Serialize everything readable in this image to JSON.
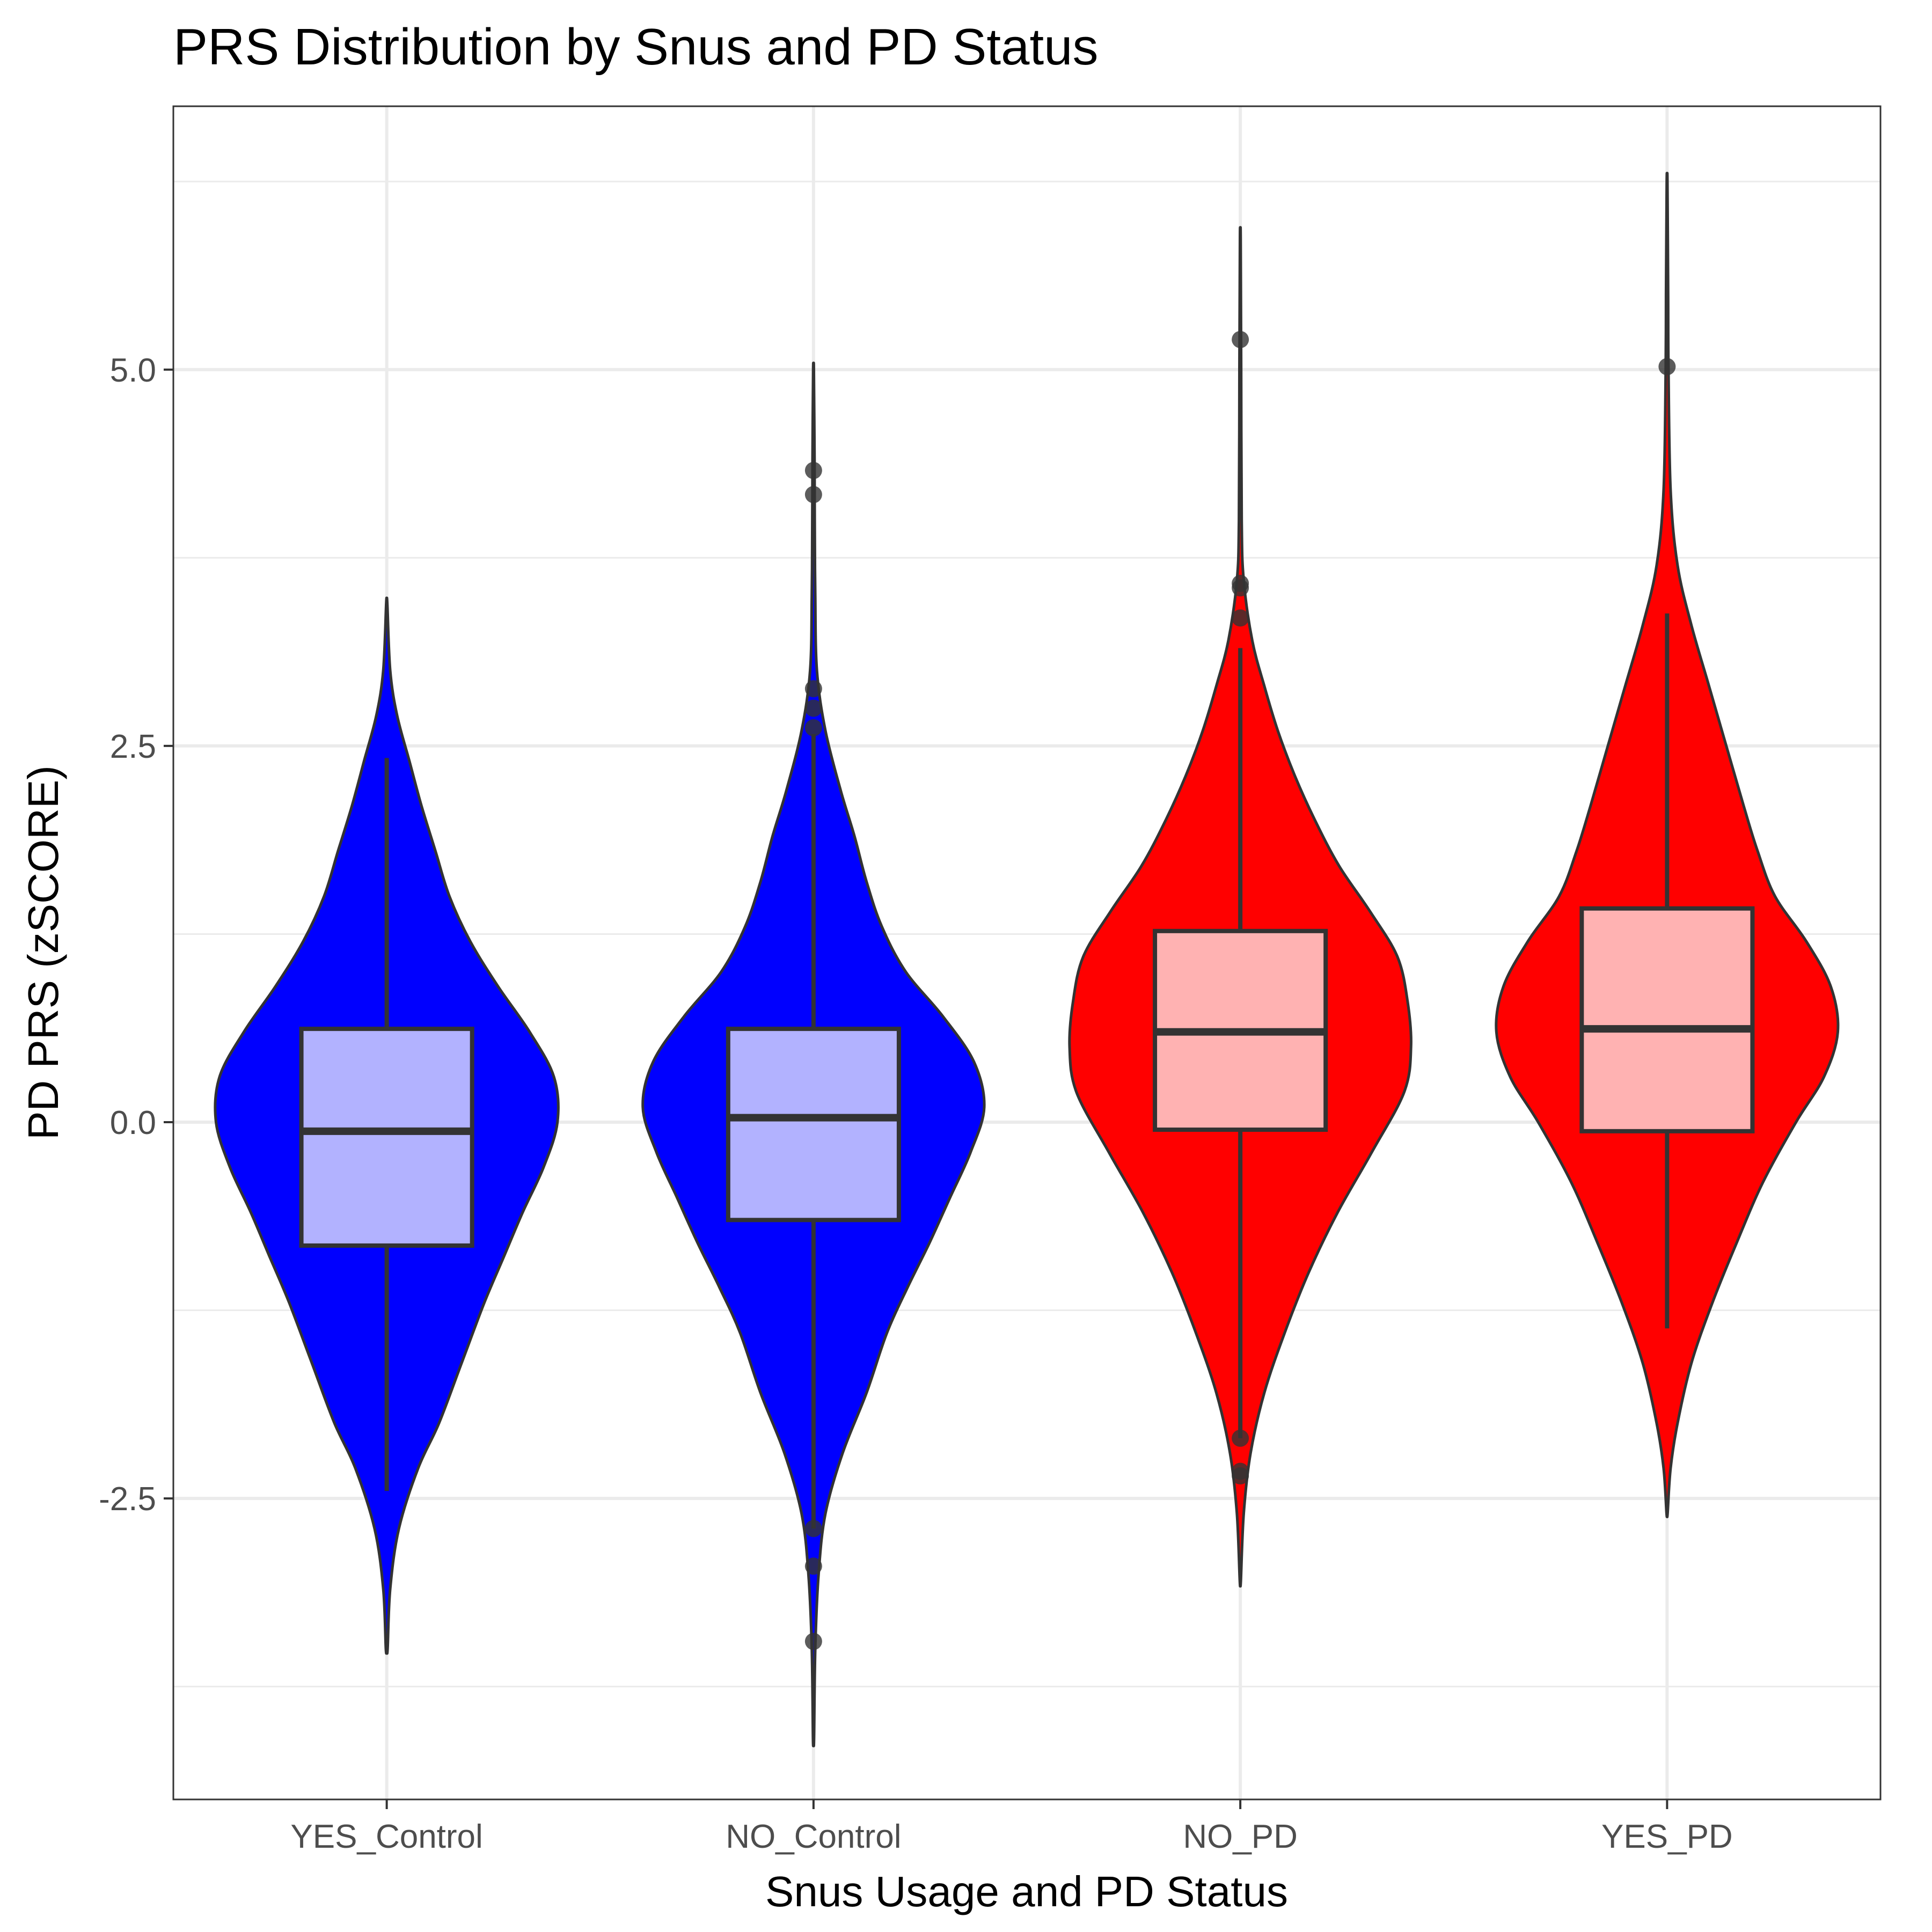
{
  "chart_data": {
    "type": "violin",
    "title": "PRS Distribution by Snus and PD Status",
    "xlabel": "Snus Usage and PD Status",
    "ylabel": "PD PRS (zSCORE)",
    "ylim": [
      -4.5,
      6.75
    ],
    "y_ticks": [
      -2.5,
      0.0,
      2.5,
      5.0
    ],
    "y_tick_labels": [
      "-2.5",
      "0.0",
      "2.5",
      "5.0"
    ],
    "grid": true,
    "categories": [
      "YES_Control",
      "NO_Control",
      "NO_PD",
      "YES_PD"
    ],
    "series": [
      {
        "category": "YES_Control",
        "violin_fill": "#0000ff",
        "box_fill": "#b2b2ff",
        "min": -3.5,
        "max": 3.45,
        "q1": -0.82,
        "median": -0.06,
        "q3": 0.62,
        "whisker_low": -2.45,
        "whisker_high": 2.42,
        "outliers": [],
        "density": [
          [
            -3.5,
            0.005
          ],
          [
            -3.1,
            0.02
          ],
          [
            -2.7,
            0.07
          ],
          [
            -2.3,
            0.18
          ],
          [
            -2.0,
            0.3
          ],
          [
            -1.6,
            0.43
          ],
          [
            -1.2,
            0.56
          ],
          [
            -0.9,
            0.67
          ],
          [
            -0.6,
            0.78
          ],
          [
            -0.3,
            0.9
          ],
          [
            0.0,
            0.98
          ],
          [
            0.3,
            0.96
          ],
          [
            0.6,
            0.82
          ],
          [
            0.9,
            0.64
          ],
          [
            1.2,
            0.48
          ],
          [
            1.5,
            0.36
          ],
          [
            1.8,
            0.28
          ],
          [
            2.1,
            0.2
          ],
          [
            2.4,
            0.13
          ],
          [
            2.7,
            0.06
          ],
          [
            3.0,
            0.02
          ],
          [
            3.45,
            0.003
          ]
        ]
      },
      {
        "category": "NO_Control",
        "violin_fill": "#0000ff",
        "box_fill": "#b2b2ff",
        "min": -4.1,
        "max": 5.0,
        "q1": -0.65,
        "median": 0.03,
        "q3": 0.62,
        "whisker_low": -2.7,
        "whisker_high": 2.58,
        "outliers": [
          -2.7,
          -2.95,
          -3.45,
          2.62,
          2.75,
          2.88,
          4.17,
          4.33
        ],
        "density": [
          [
            -4.1,
            0.003
          ],
          [
            -3.5,
            0.01
          ],
          [
            -3.0,
            0.03
          ],
          [
            -2.6,
            0.07
          ],
          [
            -2.2,
            0.17
          ],
          [
            -1.8,
            0.31
          ],
          [
            -1.4,
            0.43
          ],
          [
            -1.1,
            0.55
          ],
          [
            -0.8,
            0.68
          ],
          [
            -0.5,
            0.8
          ],
          [
            -0.2,
            0.92
          ],
          [
            0.1,
            1.0
          ],
          [
            0.4,
            0.94
          ],
          [
            0.7,
            0.76
          ],
          [
            1.0,
            0.54
          ],
          [
            1.3,
            0.4
          ],
          [
            1.6,
            0.31
          ],
          [
            1.9,
            0.24
          ],
          [
            2.2,
            0.16
          ],
          [
            2.6,
            0.07
          ],
          [
            3.0,
            0.02
          ],
          [
            3.5,
            0.01
          ],
          [
            4.0,
            0.007
          ],
          [
            4.4,
            0.006
          ],
          [
            5.0,
            0.002
          ]
        ]
      },
      {
        "category": "NO_PD",
        "violin_fill": "#ff0000",
        "box_fill": "#ffb2b2",
        "min": -3.05,
        "max": 5.88,
        "q1": -0.05,
        "median": 0.6,
        "q3": 1.27,
        "whisker_low": -2.1,
        "whisker_high": 3.15,
        "outliers": [
          -2.1,
          -2.32,
          -2.35,
          3.35,
          3.55,
          3.58,
          5.2
        ],
        "density": [
          [
            -3.05,
            0.003
          ],
          [
            -2.6,
            0.02
          ],
          [
            -2.2,
            0.06
          ],
          [
            -1.8,
            0.14
          ],
          [
            -1.4,
            0.26
          ],
          [
            -1.0,
            0.4
          ],
          [
            -0.6,
            0.57
          ],
          [
            -0.2,
            0.77
          ],
          [
            0.2,
            0.96
          ],
          [
            0.5,
            1.0
          ],
          [
            0.8,
            0.98
          ],
          [
            1.1,
            0.92
          ],
          [
            1.4,
            0.76
          ],
          [
            1.7,
            0.58
          ],
          [
            2.0,
            0.44
          ],
          [
            2.3,
            0.32
          ],
          [
            2.6,
            0.22
          ],
          [
            2.9,
            0.14
          ],
          [
            3.2,
            0.07
          ],
          [
            3.6,
            0.02
          ],
          [
            4.0,
            0.008
          ],
          [
            5.0,
            0.005
          ],
          [
            5.88,
            0.002
          ]
        ]
      },
      {
        "category": "YES_PD",
        "violin_fill": "#ff0000",
        "box_fill": "#ffb2b2",
        "min": -2.6,
        "max": 6.25,
        "q1": -0.06,
        "median": 0.62,
        "q3": 1.42,
        "whisker_low": -1.37,
        "whisker_high": 3.38,
        "outliers": [
          5.02
        ],
        "density": [
          [
            -2.6,
            0.003
          ],
          [
            -2.3,
            0.02
          ],
          [
            -2.0,
            0.06
          ],
          [
            -1.6,
            0.14
          ],
          [
            -1.2,
            0.26
          ],
          [
            -0.8,
            0.4
          ],
          [
            -0.4,
            0.55
          ],
          [
            0.0,
            0.74
          ],
          [
            0.3,
            0.9
          ],
          [
            0.6,
            0.98
          ],
          [
            0.9,
            0.94
          ],
          [
            1.2,
            0.8
          ],
          [
            1.5,
            0.62
          ],
          [
            1.8,
            0.52
          ],
          [
            2.1,
            0.44
          ],
          [
            2.5,
            0.34
          ],
          [
            2.9,
            0.24
          ],
          [
            3.3,
            0.14
          ],
          [
            3.7,
            0.06
          ],
          [
            4.2,
            0.02
          ],
          [
            5.0,
            0.008
          ],
          [
            5.5,
            0.006
          ],
          [
            6.25,
            0.002
          ]
        ]
      }
    ]
  }
}
